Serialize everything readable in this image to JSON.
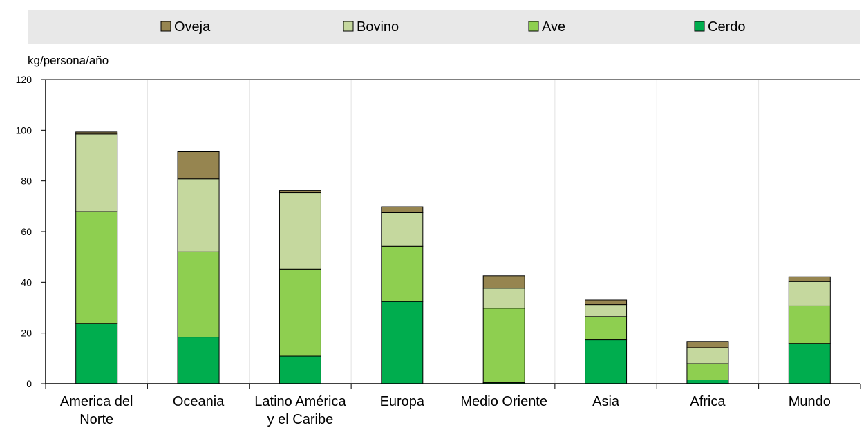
{
  "chart_data": {
    "type": "bar",
    "stacked": true,
    "ylabel": "kg/persona/año",
    "ylim": [
      0,
      120
    ],
    "yticks": [
      0,
      20,
      40,
      60,
      80,
      100,
      120
    ],
    "grid": "vertical between categories",
    "legend_position": "top",
    "categories": [
      [
        "America del",
        "Norte"
      ],
      [
        "Oceania"
      ],
      [
        "Latino América",
        "y el Caribe"
      ],
      [
        "Europa"
      ],
      [
        "Medio Oriente"
      ],
      [
        "Asia"
      ],
      [
        "Africa"
      ],
      [
        "Mundo"
      ]
    ],
    "legend_order": [
      "Oveja",
      "Bovino",
      "Ave",
      "Cerdo"
    ],
    "series": [
      {
        "name": "Cerdo",
        "color": "#00AD4E",
        "values": [
          23.8,
          18.4,
          10.9,
          32.4,
          0.4,
          17.3,
          1.5,
          15.9
        ]
      },
      {
        "name": "Ave",
        "color": "#8ECF50",
        "values": [
          44.1,
          33.6,
          34.3,
          21.8,
          29.4,
          9.2,
          6.4,
          14.8
        ]
      },
      {
        "name": "Bovino",
        "color": "#C5D89E",
        "values": [
          30.6,
          28.8,
          30.2,
          13.3,
          7.9,
          4.7,
          6.3,
          9.6
        ]
      },
      {
        "name": "Oveja",
        "color": "#968550",
        "values": [
          0.8,
          10.7,
          0.8,
          2.3,
          4.9,
          1.8,
          2.5,
          1.9
        ]
      }
    ]
  }
}
